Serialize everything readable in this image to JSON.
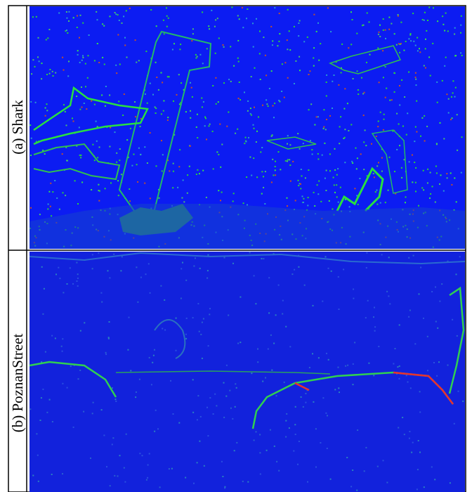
{
  "panels": [
    {
      "label": "(a) Shark"
    },
    {
      "label": "(b) PoznanStreet"
    }
  ]
}
